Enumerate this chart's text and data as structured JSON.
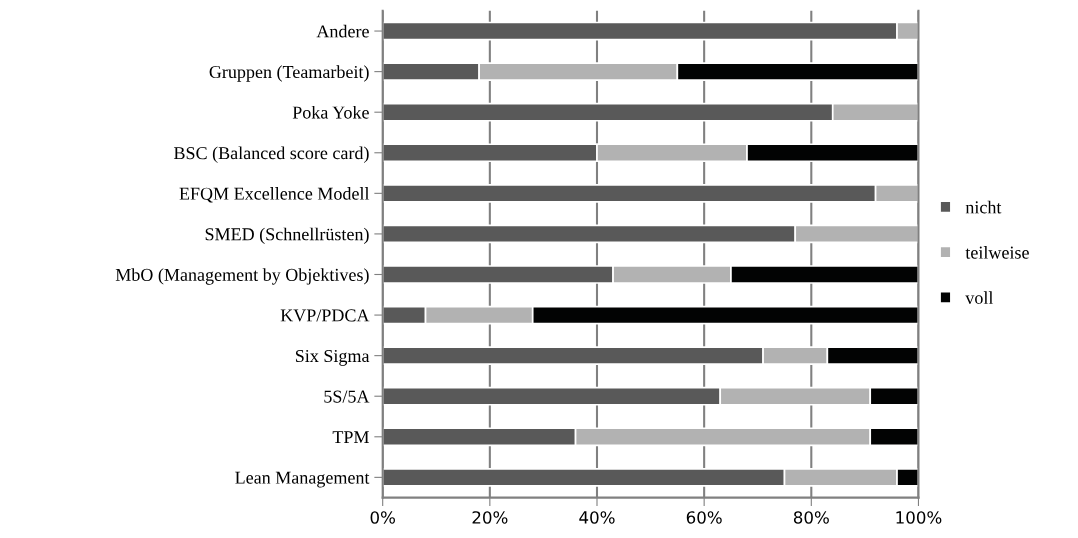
{
  "chart_data": {
    "type": "bar",
    "orientation": "horizontal",
    "stacked": true,
    "categories": [
      "Andere",
      "Gruppen (Teamarbeit)",
      "Poka Yoke",
      "BSC (Balanced score card)",
      "EFQM Excellence Modell",
      "SMED (Schnellrüsten)",
      "MbO (Management by Objektives)",
      "KVP/PDCA",
      "Six Sigma",
      "5S/5A",
      "TPM",
      "Lean Management"
    ],
    "series": [
      {
        "name": "nicht",
        "color": "#595959",
        "values": [
          96,
          18,
          84,
          40,
          92,
          77,
          43,
          8,
          71,
          63,
          36,
          75
        ]
      },
      {
        "name": "teilweise",
        "color": "#b2b2b2",
        "values": [
          4,
          37,
          16,
          28,
          8,
          23,
          22,
          20,
          12,
          28,
          55,
          21
        ]
      },
      {
        "name": "voll",
        "color": "#020303",
        "values": [
          0,
          45,
          0,
          32,
          0,
          0,
          35,
          72,
          17,
          9,
          9,
          4
        ]
      }
    ],
    "xlim": [
      0,
      100
    ],
    "xticks": [
      {
        "value": 0,
        "label": "0%"
      },
      {
        "value": 20,
        "label": "20%"
      },
      {
        "value": 40,
        "label": "40%"
      },
      {
        "value": 60,
        "label": "60%"
      },
      {
        "value": 80,
        "label": "80%"
      },
      {
        "value": 100,
        "label": "100%"
      }
    ],
    "grid": "x",
    "legend": "right"
  }
}
